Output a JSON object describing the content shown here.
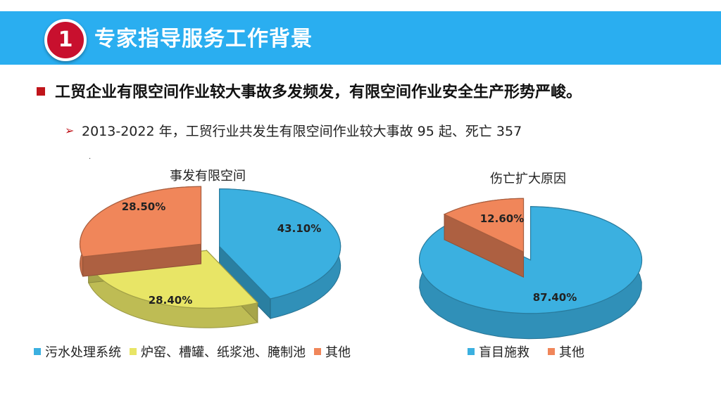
{
  "header": {
    "badge": "1",
    "title": "专家指导服务工作背景"
  },
  "bullets": {
    "main": "工贸企业有限空间作业较大事故多发频发，有限空间作业安全生产形势严峻。",
    "sub_marker": "➢",
    "sub": "2013-2022 年，工贸行业共发生有限空间作业较大事故 95 起、死亡 357",
    "dot": "."
  },
  "colors": {
    "blue": "#3bb0e0",
    "yellow": "#e8e566",
    "orange": "#f0865a",
    "header": "#2aaef0",
    "accent": "#c0151b"
  },
  "chart_data": [
    {
      "type": "pie",
      "title": "事发有限空间",
      "categories": [
        "污水处理系统",
        "炉窑、槽罐、纸浆池、腌制池",
        "其他"
      ],
      "values": [
        43.1,
        28.4,
        28.5
      ],
      "labels": [
        "43.10%",
        "28.40%",
        "28.50%"
      ],
      "legend": "bottom"
    },
    {
      "type": "pie",
      "title": "伤亡扩大原因",
      "categories": [
        "盲目施救",
        "其他"
      ],
      "values": [
        87.4,
        12.6
      ],
      "labels": [
        "87.40%",
        "12.60%"
      ],
      "legend": "bottom"
    }
  ]
}
